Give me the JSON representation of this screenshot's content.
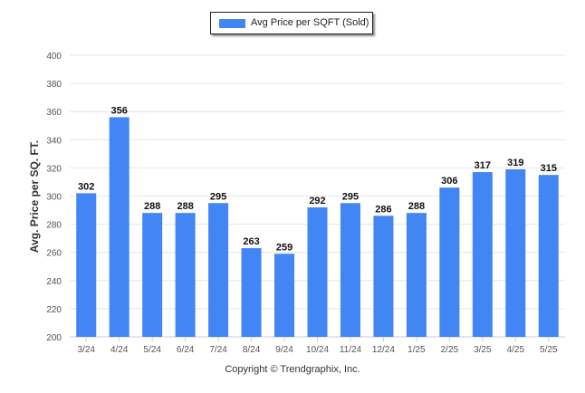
{
  "legend": {
    "label": "Avg Price per SQFT (Sold)"
  },
  "footer": {
    "copyright": "Copyright © Trendgraphix, Inc."
  },
  "colors": {
    "bar": "#4285f4",
    "grid": "#e6e6e6",
    "axis_text": "#555555",
    "value_text": "#111111"
  },
  "chart_data": {
    "type": "bar",
    "title": "",
    "xlabel": "",
    "ylabel": "Avg. Price per SQ. FT.",
    "categories": [
      "3/24",
      "4/24",
      "5/24",
      "6/24",
      "7/24",
      "8/24",
      "9/24",
      "10/24",
      "11/24",
      "12/24",
      "1/25",
      "2/25",
      "3/25",
      "4/25",
      "5/25"
    ],
    "series": [
      {
        "name": "Avg Price per SQFT (Sold)",
        "values": [
          302,
          356,
          288,
          288,
          295,
          263,
          259,
          292,
          295,
          286,
          288,
          306,
          317,
          319,
          315
        ]
      }
    ],
    "ylim": [
      200,
      400
    ],
    "yticks": [
      200,
      220,
      240,
      260,
      280,
      300,
      320,
      340,
      360,
      380,
      400
    ],
    "grid": true,
    "legend_position": "top-center",
    "data_labels": true
  }
}
